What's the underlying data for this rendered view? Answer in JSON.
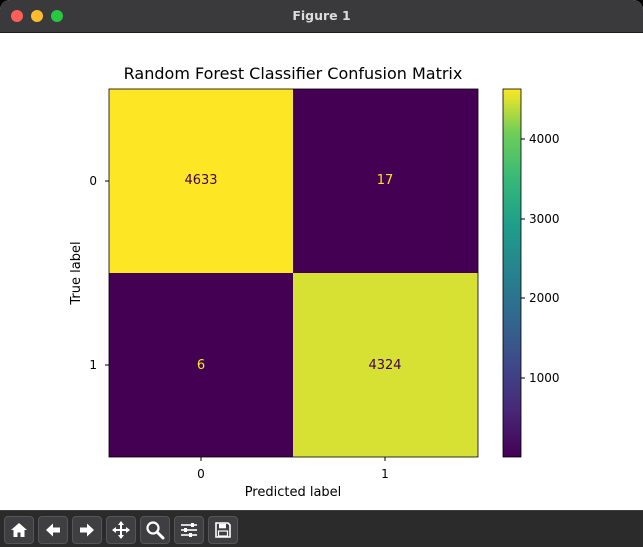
{
  "window": {
    "title": "Figure 1"
  },
  "toolbar": {
    "buttons": [
      {
        "name": "home-icon"
      },
      {
        "name": "back-arrow-icon"
      },
      {
        "name": "forward-arrow-icon"
      },
      {
        "name": "pan-icon"
      },
      {
        "name": "zoom-magnifier-icon"
      },
      {
        "name": "configure-subplots-icon"
      },
      {
        "name": "save-icon"
      }
    ]
  },
  "colors": {
    "high": "#fde725",
    "high2": "#d6e133",
    "low": "#440154",
    "text_on_low": "#fde725",
    "text_on_high": "#440154"
  },
  "chart_data": {
    "type": "heatmap",
    "title": "Random Forest Classifier Confusion Matrix",
    "xlabel": "Predicted label",
    "ylabel": "True label",
    "x_categories": [
      "0",
      "1"
    ],
    "y_categories": [
      "0",
      "1"
    ],
    "values": [
      [
        4633,
        17
      ],
      [
        6,
        4324
      ]
    ],
    "colormap": "viridis",
    "colorbar": {
      "ticks": [
        "1000",
        "2000",
        "3000",
        "4000"
      ],
      "range": [
        6,
        4633
      ]
    }
  }
}
